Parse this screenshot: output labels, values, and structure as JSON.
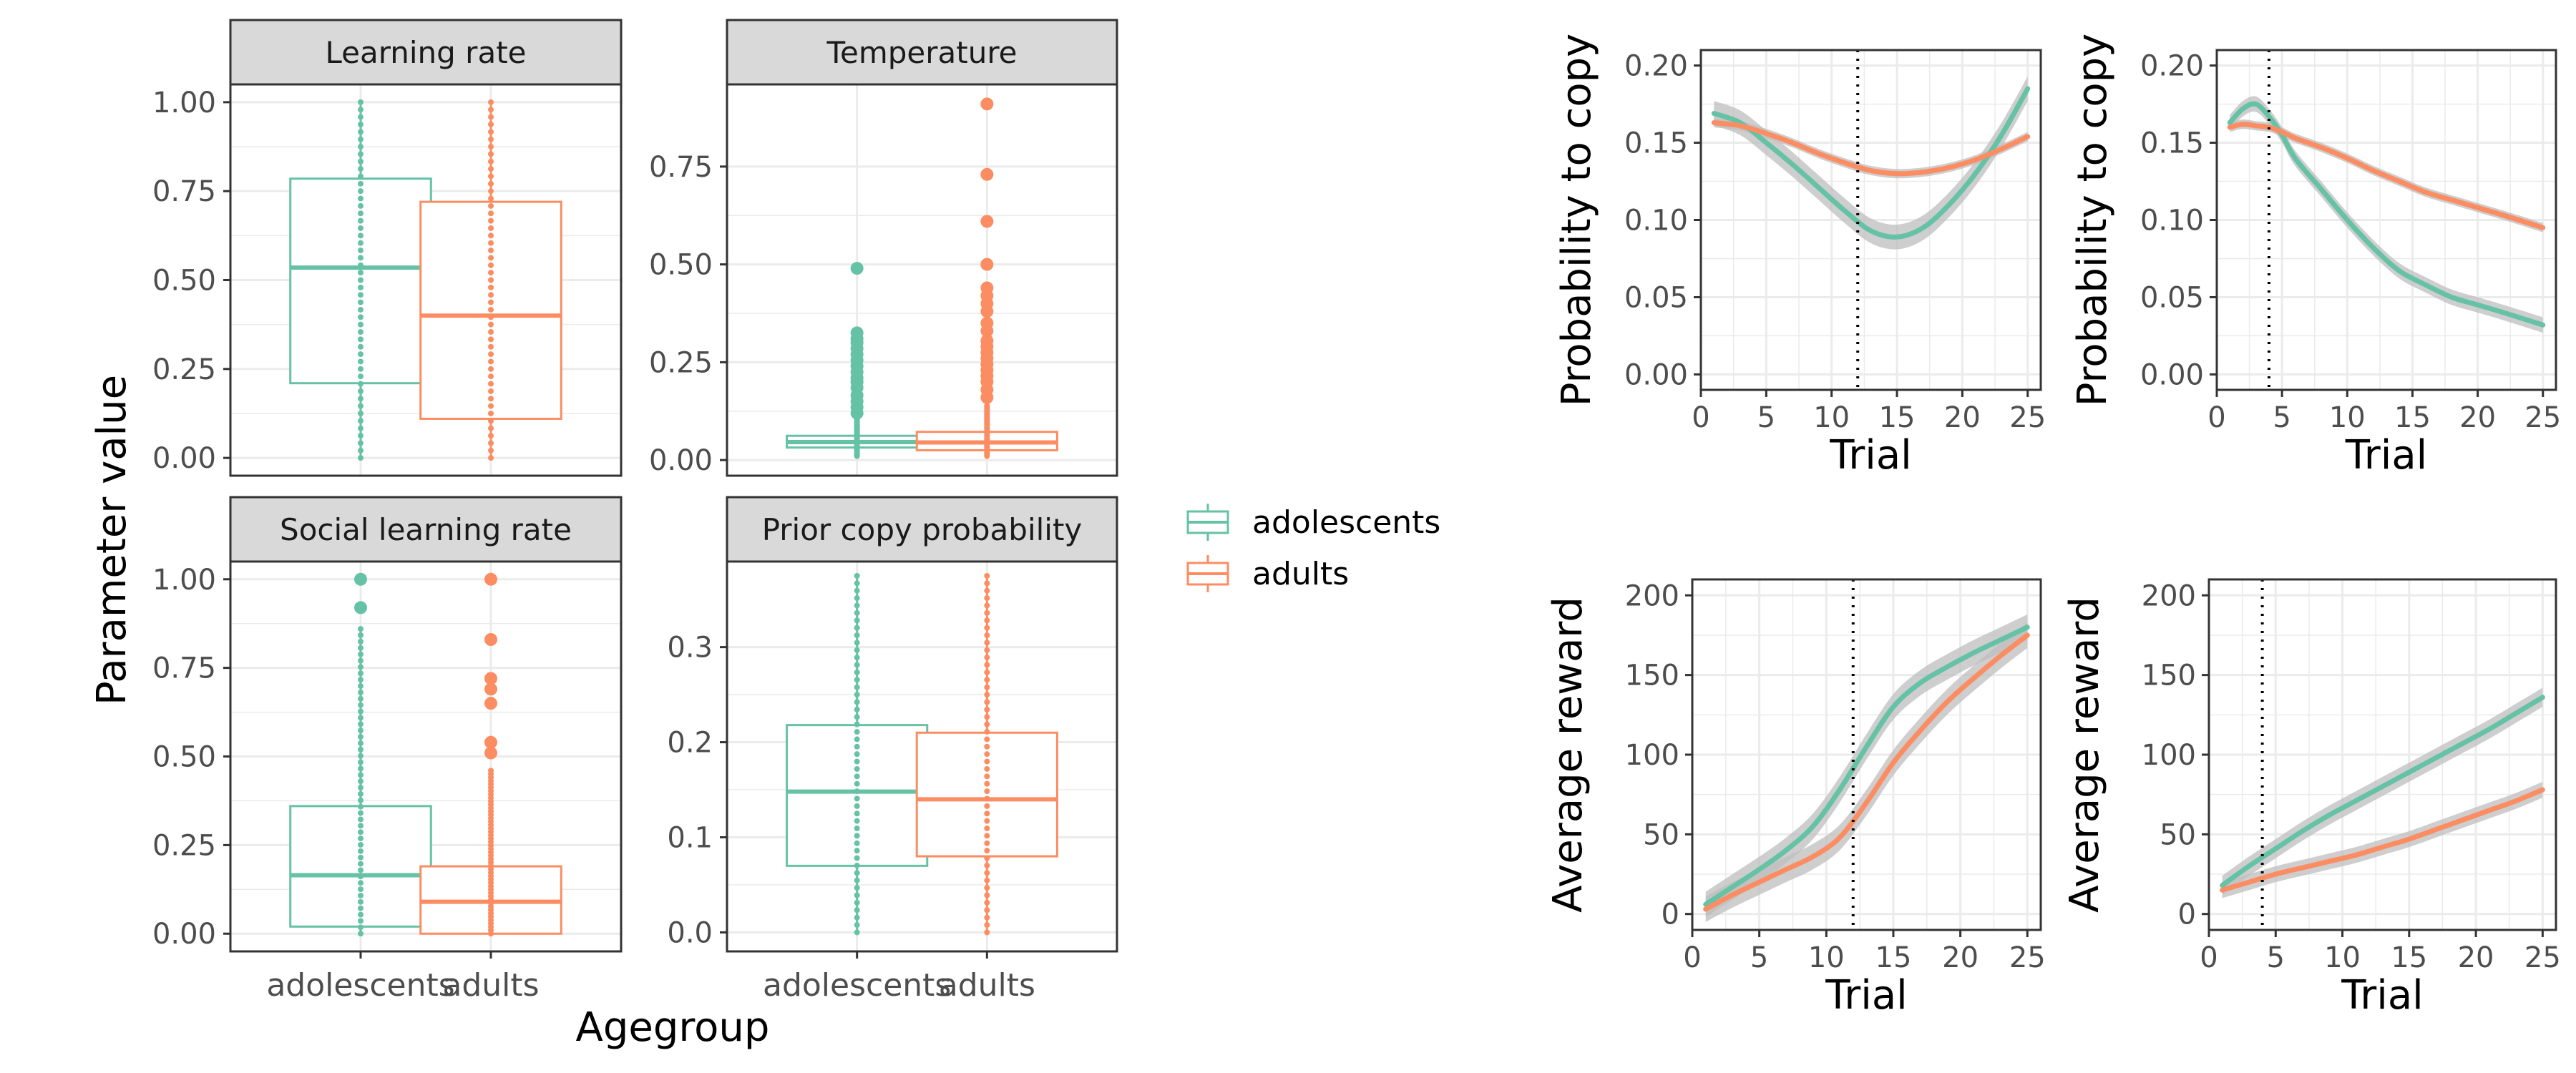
{
  "figure": {
    "left_ylabel": "Parameter value",
    "left_xlabel": "Agegroup",
    "colors": {
      "adolescents": "#66C2A5",
      "adults": "#FC8D62",
      "strip_bg": "#D9D9D9",
      "grid": "#EBEBEB",
      "ribbon": "#BEBEBE"
    }
  },
  "legend": {
    "position": "middle",
    "entries": [
      {
        "label": "adolescents",
        "color": "#66C2A5"
      },
      {
        "label": "adults",
        "color": "#FC8D62"
      }
    ]
  },
  "chart_data": [
    {
      "type": "box",
      "panel": "learning-rate",
      "strip": "Learning rate",
      "categories": [
        "adolescents",
        "adults"
      ],
      "ylim": [
        -0.05,
        1.05
      ],
      "yticks": [
        "0.00",
        "0.25",
        "0.50",
        "0.75",
        "1.00"
      ],
      "boxes": [
        {
          "group": "adolescents",
          "q1": 0.21,
          "median": 0.535,
          "q3": 0.785,
          "whisker_low": 0.0,
          "whisker_high": 1.0
        },
        {
          "group": "adults",
          "q1": 0.11,
          "median": 0.4,
          "q3": 0.72,
          "whisker_low": 0.0,
          "whisker_high": 1.0
        }
      ],
      "outliers": [
        [],
        []
      ]
    },
    {
      "type": "box",
      "panel": "temperature",
      "strip": "Temperature",
      "categories": [
        "adolescents",
        "adults"
      ],
      "ylim": [
        -0.04,
        0.96
      ],
      "yticks": [
        "0.00",
        "0.25",
        "0.50",
        "0.75"
      ],
      "boxes": [
        {
          "group": "adolescents",
          "q1": 0.032,
          "median": 0.046,
          "q3": 0.062,
          "whisker_low": 0.01,
          "whisker_high": 0.105
        },
        {
          "group": "adults",
          "q1": 0.025,
          "median": 0.045,
          "q3": 0.072,
          "whisker_low": 0.01,
          "whisker_high": 0.14
        }
      ],
      "outliers": [
        [
          0.12,
          0.135,
          0.15,
          0.165,
          0.185,
          0.2,
          0.21,
          0.225,
          0.24,
          0.255,
          0.27,
          0.285,
          0.3,
          0.31,
          0.325,
          0.49
        ],
        [
          0.16,
          0.18,
          0.2,
          0.215,
          0.23,
          0.245,
          0.26,
          0.275,
          0.29,
          0.305,
          0.33,
          0.35,
          0.38,
          0.4,
          0.42,
          0.44,
          0.5,
          0.61,
          0.73,
          0.91
        ]
      ]
    },
    {
      "type": "box",
      "panel": "social-learning-rate",
      "strip": "Social learning rate",
      "categories": [
        "adolescents",
        "adults"
      ],
      "ylim": [
        -0.05,
        1.05
      ],
      "yticks": [
        "0.00",
        "0.25",
        "0.50",
        "0.75",
        "1.00"
      ],
      "boxes": [
        {
          "group": "adolescents",
          "q1": 0.02,
          "median": 0.165,
          "q3": 0.36,
          "whisker_low": 0.0,
          "whisker_high": 0.86
        },
        {
          "group": "adults",
          "q1": 0.0,
          "median": 0.09,
          "q3": 0.19,
          "whisker_low": 0.0,
          "whisker_high": 0.46
        }
      ],
      "outliers": [
        [
          0.92,
          1.0
        ],
        [
          0.51,
          0.54,
          0.65,
          0.69,
          0.72,
          0.83,
          1.0
        ]
      ]
    },
    {
      "type": "box",
      "panel": "prior-copy-probability",
      "strip": "Prior copy probability",
      "categories": [
        "adolescents",
        "adults"
      ],
      "ylim": [
        -0.02,
        0.39
      ],
      "yticks": [
        "0.0",
        "0.1",
        "0.2",
        "0.3"
      ],
      "boxes": [
        {
          "group": "adolescents",
          "q1": 0.07,
          "median": 0.148,
          "q3": 0.218,
          "whisker_low": 0.0,
          "whisker_high": 0.375
        },
        {
          "group": "adults",
          "q1": 0.08,
          "median": 0.14,
          "q3": 0.21,
          "whisker_low": 0.0,
          "whisker_high": 0.375
        }
      ],
      "outliers": [
        [],
        []
      ]
    },
    {
      "type": "line",
      "panel": "copy-prob-a",
      "xlabel": "Trial",
      "ylabel": "Probability to copy",
      "xlim": [
        0,
        26
      ],
      "ylim": [
        -0.01,
        0.21
      ],
      "xticks": [
        0,
        5,
        10,
        15,
        20,
        25
      ],
      "yticks": [
        "0.00",
        "0.05",
        "0.10",
        "0.15",
        "0.20"
      ],
      "vline": 12,
      "x": [
        1,
        3,
        5,
        7,
        9,
        11,
        13,
        15,
        17,
        19,
        21,
        23,
        25
      ],
      "series": [
        {
          "group": "adolescents",
          "values": [
            0.169,
            0.163,
            0.15,
            0.136,
            0.121,
            0.106,
            0.093,
            0.089,
            0.095,
            0.11,
            0.13,
            0.155,
            0.185
          ],
          "band": 0.008
        },
        {
          "group": "adults",
          "values": [
            0.163,
            0.161,
            0.156,
            0.15,
            0.143,
            0.137,
            0.132,
            0.13,
            0.131,
            0.134,
            0.139,
            0.146,
            0.154
          ],
          "band": 0.003
        }
      ]
    },
    {
      "type": "line",
      "panel": "copy-prob-b",
      "xlabel": "Trial",
      "ylabel": "Probability to copy",
      "xlim": [
        0,
        26
      ],
      "ylim": [
        -0.01,
        0.21
      ],
      "xticks": [
        0,
        5,
        10,
        15,
        20,
        25
      ],
      "yticks": [
        "0.00",
        "0.05",
        "0.10",
        "0.15",
        "0.20"
      ],
      "vline": 4,
      "x": [
        1,
        2,
        3,
        4,
        5,
        6,
        8,
        10,
        12,
        14,
        16,
        18,
        20,
        22,
        25
      ],
      "series": [
        {
          "group": "adolescents",
          "values": [
            0.163,
            0.172,
            0.175,
            0.167,
            0.155,
            0.14,
            0.12,
            0.1,
            0.082,
            0.067,
            0.058,
            0.05,
            0.045,
            0.04,
            0.032
          ],
          "band": 0.005
        },
        {
          "group": "adults",
          "values": [
            0.16,
            0.162,
            0.161,
            0.16,
            0.157,
            0.153,
            0.147,
            0.14,
            0.132,
            0.125,
            0.118,
            0.113,
            0.108,
            0.103,
            0.095
          ],
          "band": 0.003
        }
      ]
    },
    {
      "type": "line",
      "panel": "reward-a",
      "xlabel": "Trial",
      "ylabel": "Average reward",
      "xlim": [
        0,
        26
      ],
      "ylim": [
        -10,
        210
      ],
      "xticks": [
        0,
        5,
        10,
        15,
        20,
        25
      ],
      "yticks": [
        "0",
        "50",
        "100",
        "150",
        "200"
      ],
      "vline": 12,
      "x": [
        1,
        3,
        5,
        7,
        9,
        11,
        13,
        15,
        17,
        19,
        21,
        23,
        25
      ],
      "series": [
        {
          "group": "adolescents",
          "values": [
            6,
            17,
            28,
            40,
            55,
            78,
            105,
            130,
            145,
            155,
            164,
            172,
            180
          ],
          "band": 8
        },
        {
          "group": "adults",
          "values": [
            3,
            12,
            20,
            28,
            36,
            48,
            70,
            95,
            115,
            133,
            148,
            162,
            175
          ],
          "band": 8
        }
      ]
    },
    {
      "type": "line",
      "panel": "reward-b",
      "xlabel": "Trial",
      "ylabel": "Average reward",
      "xlim": [
        0,
        26
      ],
      "ylim": [
        -10,
        210
      ],
      "xticks": [
        0,
        5,
        10,
        15,
        20,
        25
      ],
      "yticks": [
        "0",
        "50",
        "100",
        "150",
        "200"
      ],
      "vline": 4,
      "x": [
        1,
        3,
        5,
        7,
        9,
        11,
        13,
        15,
        17,
        19,
        21,
        23,
        25
      ],
      "series": [
        {
          "group": "adolescents",
          "values": [
            18,
            30,
            41,
            52,
            62,
            71,
            80,
            89,
            98,
            107,
            116,
            126,
            136
          ],
          "band": 6
        },
        {
          "group": "adults",
          "values": [
            15,
            20,
            25,
            29,
            33,
            37,
            42,
            47,
            53,
            59,
            65,
            71,
            78
          ],
          "band": 5
        }
      ]
    }
  ]
}
